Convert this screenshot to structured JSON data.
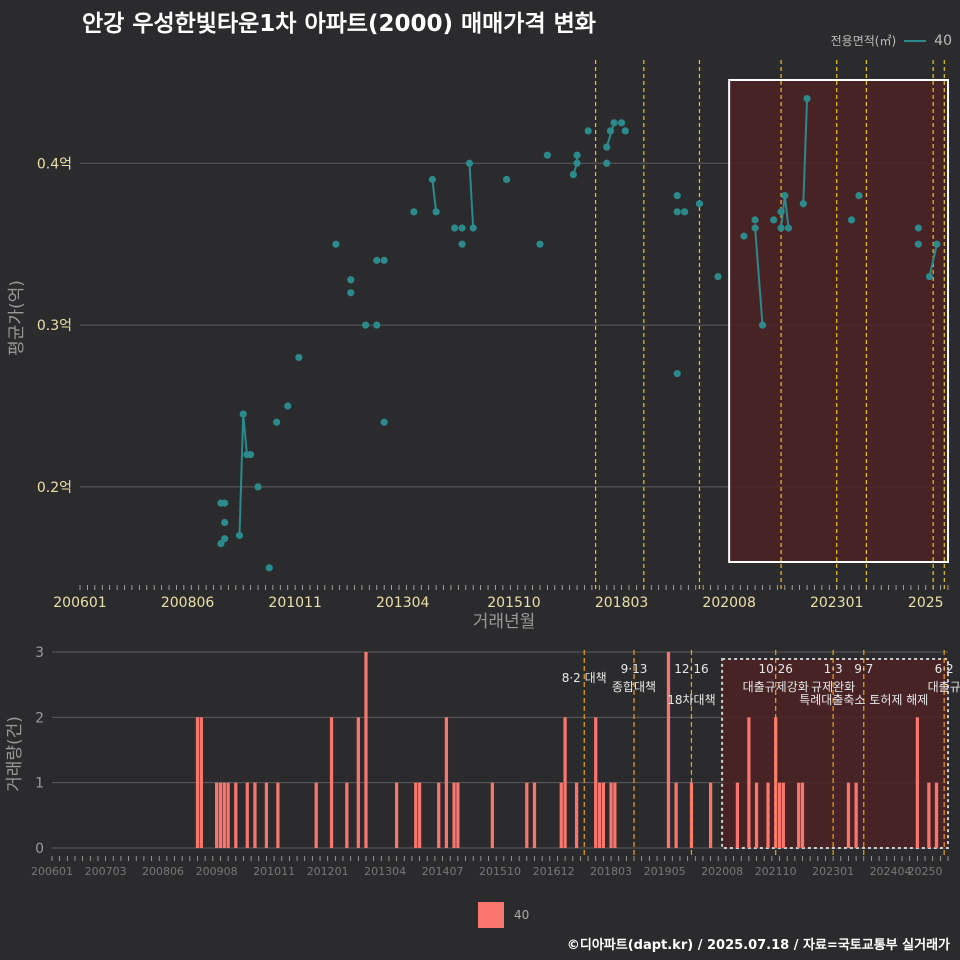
{
  "title": "안강 우성한빛타운1차 아파트(2000) 매매가격 변화",
  "legend": {
    "title": "전용면적(㎡)",
    "series": "40"
  },
  "caption": "©디아파트(dapt.kr) / 2025.07.18 / 자료=국토교통부 실거래가",
  "bottom_legend": {
    "label": "40"
  },
  "colors": {
    "background": "#2b2b2d",
    "line": "#2a8a8c",
    "bar": "#f8766d",
    "policy_line": "#e6c619",
    "highlight_fill": "#4e2226"
  },
  "chart_data": [
    {
      "type": "line",
      "title": "",
      "xlabel": "거래년월",
      "ylabel": "평균가(억)",
      "ylim": [
        0.14,
        0.47
      ],
      "xlim": [
        "2006-01",
        "2025-07"
      ],
      "x_tick_labels": [
        "200601",
        "200806",
        "201011",
        "201304",
        "201510",
        "201803",
        "202008",
        "202301",
        "2025"
      ],
      "y_tick_labels": [
        "0.2억",
        "0.3억",
        "0.4억"
      ],
      "y_ticks": [
        0.2,
        0.3,
        0.4
      ],
      "grid": true,
      "series": [
        {
          "name": "40",
          "points": [
            [
              "2009-03",
              0.165
            ],
            [
              "2009-03",
              0.19
            ],
            [
              "2009-04",
              0.19
            ],
            [
              "2009-04",
              0.168
            ],
            [
              "2009-04",
              0.178
            ],
            [
              "2009-08",
              0.17
            ],
            [
              "2009-09",
              0.245
            ],
            [
              "2009-10",
              0.22
            ],
            [
              "2009-11",
              0.22
            ],
            [
              "2010-01",
              0.2
            ],
            [
              "2010-04",
              0.15
            ],
            [
              "2010-06",
              0.24
            ],
            [
              "2010-09",
              0.25
            ],
            [
              "2010-12",
              0.28
            ],
            [
              "2011-10",
              0.35
            ],
            [
              "2012-02",
              0.32
            ],
            [
              "2012-02",
              0.328
            ],
            [
              "2012-06",
              0.3
            ],
            [
              "2012-09",
              0.3
            ],
            [
              "2012-09",
              0.34
            ],
            [
              "2012-11",
              0.24
            ],
            [
              "2012-11",
              0.34
            ],
            [
              "2013-07",
              0.37
            ],
            [
              "2013-12",
              0.39
            ],
            [
              "2014-01",
              0.37
            ],
            [
              "2014-06",
              0.36
            ],
            [
              "2014-08",
              0.35
            ],
            [
              "2014-08",
              0.36
            ],
            [
              "2014-10",
              0.4
            ],
            [
              "2014-11",
              0.36
            ],
            [
              "2015-08",
              0.39
            ],
            [
              "2016-05",
              0.35
            ],
            [
              "2016-07",
              0.405
            ],
            [
              "2017-02",
              0.393
            ],
            [
              "2017-03",
              0.4
            ],
            [
              "2017-03",
              0.405
            ],
            [
              "2017-06",
              0.42
            ],
            [
              "2017-11",
              0.41
            ],
            [
              "2017-11",
              0.4
            ],
            [
              "2017-12",
              0.42
            ],
            [
              "2018-01",
              0.425
            ],
            [
              "2018-03",
              0.425
            ],
            [
              "2018-04",
              0.42
            ],
            [
              "2019-06",
              0.27
            ],
            [
              "2019-06",
              0.38
            ],
            [
              "2019-06",
              0.37
            ],
            [
              "2019-08",
              0.37
            ],
            [
              "2019-12",
              0.375
            ],
            [
              "2020-05",
              0.33
            ],
            [
              "2020-12",
              0.355
            ],
            [
              "2021-03",
              0.365
            ],
            [
              "2021-03",
              0.36
            ],
            [
              "2021-05",
              0.3
            ],
            [
              "2021-08",
              0.365
            ],
            [
              "2021-10",
              0.37
            ],
            [
              "2021-10",
              0.36
            ],
            [
              "2021-11",
              0.38
            ],
            [
              "2021-12",
              0.36
            ],
            [
              "2022-04",
              0.375
            ],
            [
              "2022-05",
              0.44
            ],
            [
              "2023-05",
              0.365
            ],
            [
              "2023-07",
              0.38
            ],
            [
              "2024-11",
              0.36
            ],
            [
              "2024-11",
              0.35
            ],
            [
              "2025-02",
              0.33
            ],
            [
              "2025-04",
              0.35
            ]
          ],
          "segments": [
            [
              [
                "2009-04",
                0.178
              ],
              [
                "2009-04",
                0.179
              ]
            ],
            [
              [
                "2009-08",
                0.17
              ],
              [
                "2009-09",
                0.245
              ],
              [
                "2009-10",
                0.22
              ]
            ],
            [
              [
                "2013-12",
                0.39
              ],
              [
                "2014-01",
                0.37
              ]
            ],
            [
              [
                "2014-10",
                0.4
              ],
              [
                "2014-11",
                0.36
              ]
            ],
            [
              [
                "2017-02",
                0.393
              ],
              [
                "2017-03",
                0.4
              ],
              [
                "2017-03",
                0.405
              ]
            ],
            [
              [
                "2017-11",
                0.41
              ],
              [
                "2018-01",
                0.425
              ]
            ],
            [
              [
                "2021-03",
                0.36
              ],
              [
                "2021-05",
                0.3
              ]
            ],
            [
              [
                "2021-10",
                0.36
              ],
              [
                "2021-11",
                0.38
              ],
              [
                "2021-12",
                0.36
              ]
            ],
            [
              [
                "2022-04",
                0.375
              ],
              [
                "2022-05",
                0.44
              ]
            ],
            [
              [
                "2025-02",
                0.33
              ],
              [
                "2025-04",
                0.35
              ]
            ]
          ]
        }
      ],
      "policy_dates": [
        "2017-08",
        "2018-09",
        "2019-12",
        "2021-10",
        "2023-01",
        "2023-09",
        "2025-03",
        "2025-06"
      ],
      "highlight_range": [
        "2020-08",
        "2025-07"
      ]
    },
    {
      "type": "bar",
      "title": "",
      "ylabel": "거래량(건)",
      "ylim": [
        0,
        3
      ],
      "y_tick_labels": [
        "0",
        "1",
        "2",
        "3"
      ],
      "x_tick_labels": [
        "200601",
        "200703",
        "200806",
        "200908",
        "201011",
        "201201",
        "201304",
        "201407",
        "201510",
        "201612",
        "201803",
        "201905",
        "202008",
        "202110",
        "202301",
        "202404",
        "20250"
      ],
      "series": [
        {
          "name": "40",
          "bars": [
            [
              "2009-03",
              2
            ],
            [
              "2009-04",
              2
            ],
            [
              "2009-08",
              1
            ],
            [
              "2009-09",
              1
            ],
            [
              "2009-10",
              1
            ],
            [
              "2009-11",
              1
            ],
            [
              "2010-01",
              1
            ],
            [
              "2010-04",
              1
            ],
            [
              "2010-06",
              1
            ],
            [
              "2010-09",
              1
            ],
            [
              "2010-12",
              1
            ],
            [
              "2011-10",
              1
            ],
            [
              "2012-02",
              2
            ],
            [
              "2012-06",
              1
            ],
            [
              "2012-09",
              2
            ],
            [
              "2012-11",
              3
            ],
            [
              "2013-07",
              1
            ],
            [
              "2013-12",
              1
            ],
            [
              "2014-01",
              1
            ],
            [
              "2014-06",
              1
            ],
            [
              "2014-08",
              2
            ],
            [
              "2014-10",
              1
            ],
            [
              "2014-11",
              1
            ],
            [
              "2015-08",
              1
            ],
            [
              "2016-05",
              1
            ],
            [
              "2016-07",
              1
            ],
            [
              "2017-02",
              1
            ],
            [
              "2017-03",
              2
            ],
            [
              "2017-06",
              1
            ],
            [
              "2017-11",
              2
            ],
            [
              "2017-12",
              1
            ],
            [
              "2018-01",
              1
            ],
            [
              "2018-03",
              1
            ],
            [
              "2018-04",
              1
            ],
            [
              "2019-06",
              3
            ],
            [
              "2019-08",
              1
            ],
            [
              "2019-12",
              1
            ],
            [
              "2020-05",
              1
            ],
            [
              "2020-12",
              1
            ],
            [
              "2021-03",
              2
            ],
            [
              "2021-05",
              1
            ],
            [
              "2021-08",
              1
            ],
            [
              "2021-10",
              2
            ],
            [
              "2021-11",
              1
            ],
            [
              "2021-12",
              1
            ],
            [
              "2022-04",
              1
            ],
            [
              "2022-05",
              1
            ],
            [
              "2023-05",
              1
            ],
            [
              "2023-07",
              1
            ],
            [
              "2024-11",
              2
            ],
            [
              "2025-02",
              1
            ],
            [
              "2025-04",
              1
            ]
          ]
        }
      ],
      "policy_annotations": [
        {
          "date": "2017-08",
          "line1": "",
          "line2": "8·2 대책"
        },
        {
          "date": "2018-09",
          "line1": "9·13",
          "line2": "종합대책"
        },
        {
          "date": "2019-12",
          "line1": "12·16",
          "line2": "18차대책"
        },
        {
          "date": "2021-10",
          "line1": "10·26",
          "line2": "대출규제강화"
        },
        {
          "date": "2023-01",
          "line1": "1·3",
          "line2": "규제완화"
        },
        {
          "date": "2023-09",
          "line1": "9·7",
          "line2": "특례대출축소 토허제 해제"
        },
        {
          "date": "2025-06",
          "line1": "6·2",
          "line2": "대출규"
        }
      ],
      "highlight_range": [
        "2020-08",
        "2025-07"
      ]
    }
  ]
}
